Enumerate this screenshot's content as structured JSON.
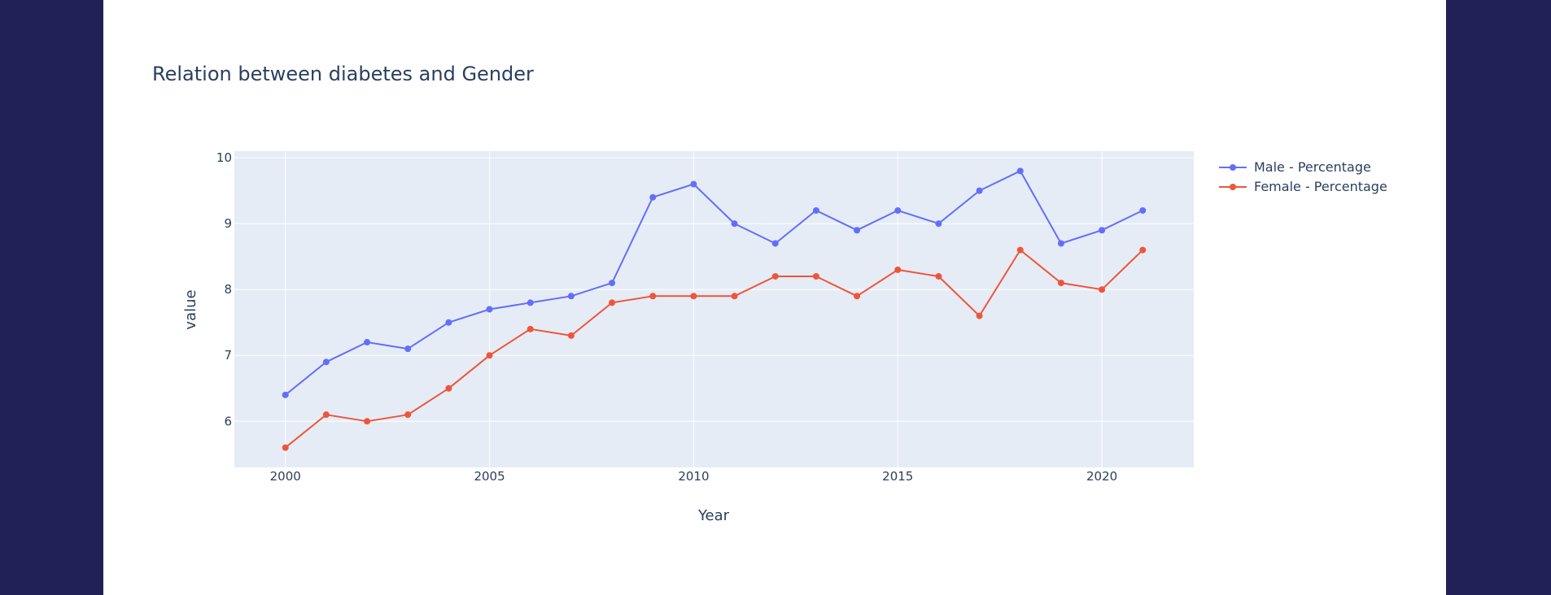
{
  "colors": {
    "page_background": "#212157",
    "card_background": "#ffffff",
    "plot_background": "#e5ecf6",
    "grid": "#ffffff",
    "text": "#2a3f5f"
  },
  "chart_data": {
    "type": "line",
    "title": "Relation between diabetes and Gender",
    "xlabel": "Year",
    "ylabel": "value",
    "xlim": [
      1998.75,
      2022.25
    ],
    "ylim": [
      5.3,
      10.1
    ],
    "x_ticks": [
      "2000",
      "2005",
      "2010",
      "2015",
      "2020"
    ],
    "y_ticks": [
      "6",
      "7",
      "8",
      "9",
      "10"
    ],
    "grid": true,
    "legend": "top-right, outside plot",
    "x": [
      2000,
      2001,
      2002,
      2003,
      2004,
      2005,
      2006,
      2007,
      2008,
      2009,
      2010,
      2011,
      2012,
      2013,
      2014,
      2015,
      2016,
      2017,
      2018,
      2019,
      2020,
      2021
    ],
    "series": [
      {
        "name": "Male - Percentage",
        "color": "#636efa",
        "values": [
          6.4,
          6.9,
          7.2,
          7.1,
          7.5,
          7.7,
          7.8,
          7.9,
          8.1,
          9.4,
          9.6,
          9.0,
          8.7,
          9.2,
          8.9,
          9.2,
          9.0,
          9.5,
          9.8,
          8.7,
          8.9,
          9.2
        ]
      },
      {
        "name": "Female - Percentage",
        "color": "#ef553b",
        "values": [
          5.6,
          6.1,
          6.0,
          6.1,
          6.5,
          7.0,
          7.4,
          7.3,
          7.8,
          7.9,
          7.9,
          7.9,
          8.2,
          8.2,
          7.9,
          8.3,
          8.2,
          7.6,
          8.6,
          8.1,
          8.0,
          8.6
        ]
      }
    ]
  }
}
